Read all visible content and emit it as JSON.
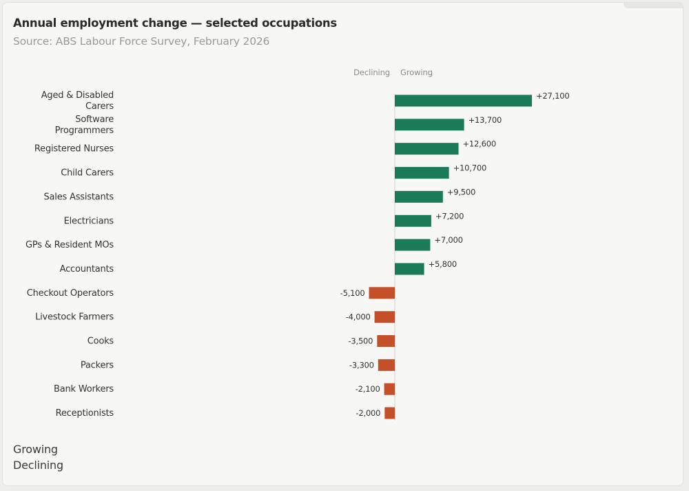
{
  "title": "Annual employment change — selected occupations",
  "subtitle": "Source: ABS Labour Force Survey, February 2026",
  "header": {
    "declining_label": "Declining",
    "growing_label": "Growing"
  },
  "legend": {
    "growing": "Growing",
    "declining": "Declining"
  },
  "colors": {
    "growing": "#1b7a57",
    "declining": "#c4502a",
    "axis": "#cfcfcc",
    "background": "#f7f7f5"
  },
  "chart_data": {
    "type": "bar",
    "orientation": "horizontal",
    "title": "Annual employment change — selected occupations",
    "subtitle": "Source: ABS Labour Force Survey, February 2026",
    "categories": [
      [
        "Aged & Disabled",
        "Carers"
      ],
      [
        "Software",
        "Programmers"
      ],
      [
        "Registered Nurses"
      ],
      [
        "Child Carers"
      ],
      [
        "Sales Assistants"
      ],
      [
        "Electricians"
      ],
      [
        "GPs & Resident MOs"
      ],
      [
        "Accountants"
      ],
      [
        "Checkout Operators"
      ],
      [
        "Livestock Farmers"
      ],
      [
        "Cooks"
      ],
      [
        "Packers"
      ],
      [
        "Bank Workers"
      ],
      [
        "Receptionists"
      ]
    ],
    "values": [
      27100,
      13700,
      12600,
      10700,
      9500,
      7200,
      7000,
      5800,
      -5100,
      -4000,
      -3500,
      -3300,
      -2100,
      -2000
    ],
    "value_labels": [
      "+27,100",
      "+13,700",
      "+12,600",
      "+10,700",
      "+9,500",
      "+7,200",
      "+7,000",
      "+5,800",
      "-5,100",
      "-4,000",
      "-3,500",
      "-3,300",
      "-2,100",
      "-2,000"
    ],
    "legend": [
      "Growing",
      "Declining"
    ],
    "legend_position": "bottom-left",
    "grid": false
  }
}
